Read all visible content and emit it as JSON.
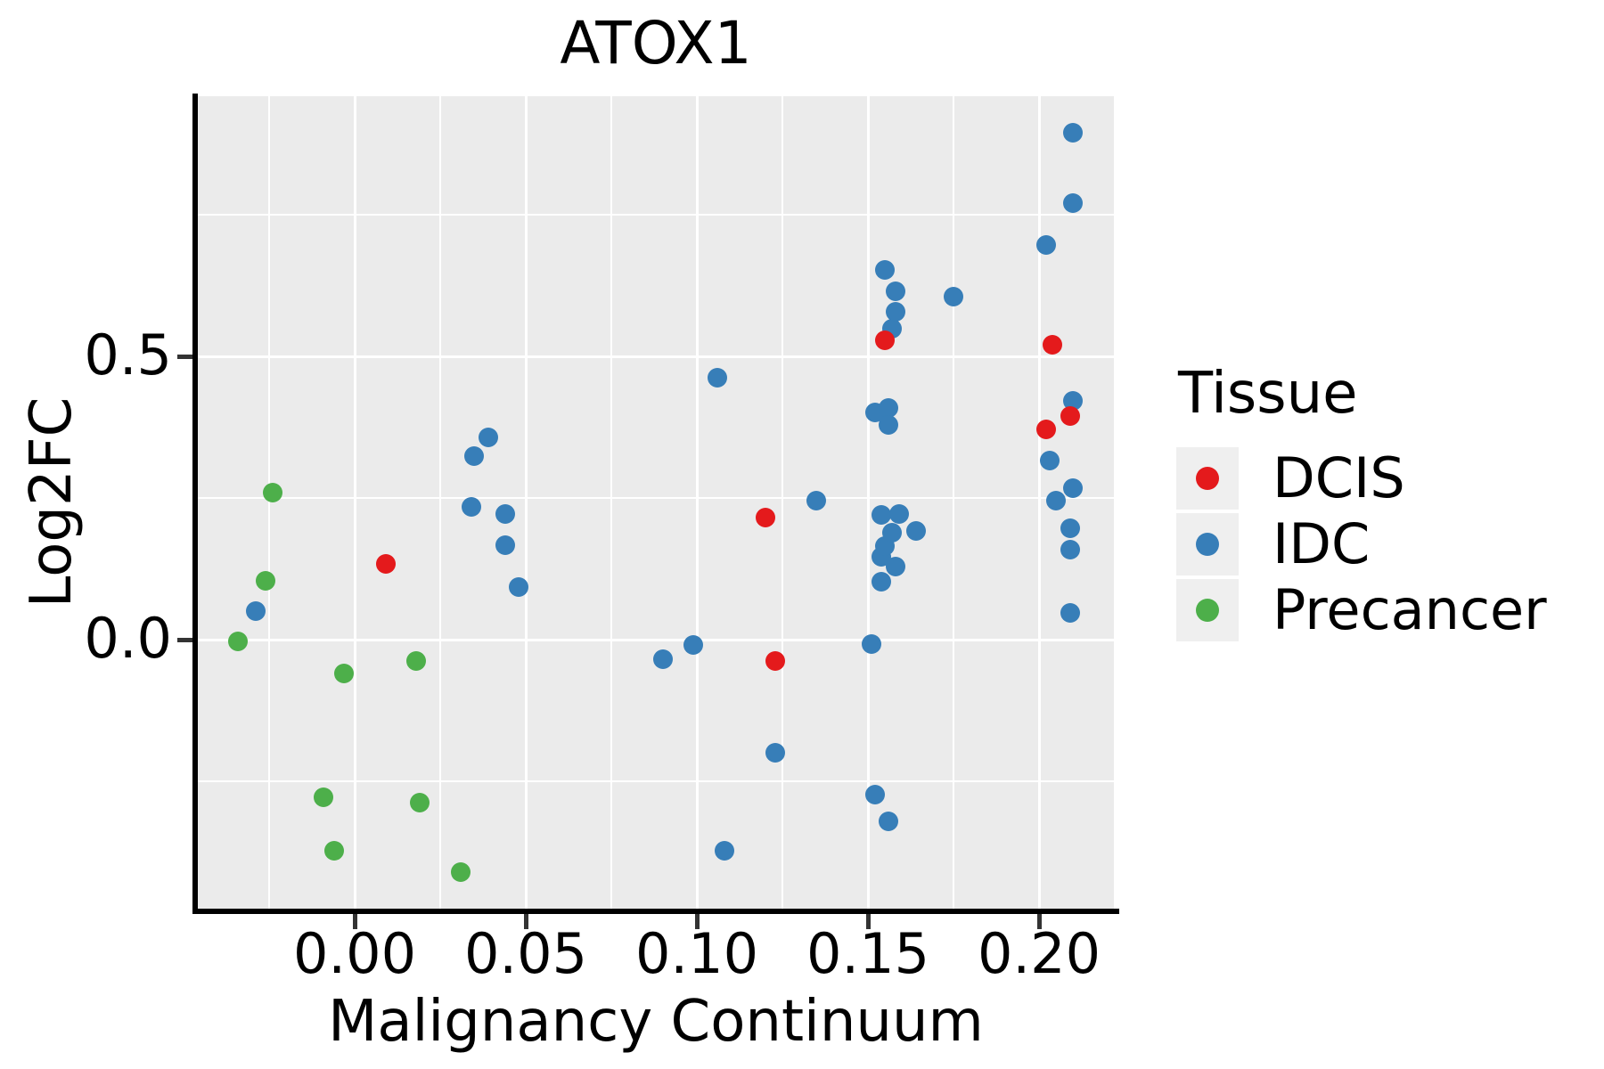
{
  "title": "ATOX1",
  "axes": {
    "x": {
      "label": "Malignancy Continuum",
      "tick_labels": [
        "0.00",
        "0.05",
        "0.10",
        "0.15",
        "0.20"
      ],
      "tick_values": [
        0.0,
        0.05,
        0.1,
        0.15,
        0.2
      ],
      "minor_values": [
        -0.025,
        0.025,
        0.075,
        0.125,
        0.175
      ],
      "range": [
        -0.046,
        0.222
      ]
    },
    "y": {
      "label": "Log2FC",
      "tick_labels": [
        "0.5",
        "0.0"
      ],
      "tick_values": [
        0.5,
        0.0
      ],
      "minor_values": [
        0.75,
        0.25,
        -0.25
      ],
      "range": [
        -0.475,
        0.96
      ]
    }
  },
  "legend": {
    "title": "Tissue",
    "entries": [
      {
        "label": "DCIS",
        "color": "#E41A1C"
      },
      {
        "label": "IDC",
        "color": "#377EB8"
      },
      {
        "label": "Precancer",
        "color": "#4DAF4A"
      }
    ]
  },
  "colors": {
    "panel_background": "#EBEBEB",
    "gridline": "#FFFFFF",
    "axis_line": "#000000",
    "tick_mark": "#333333",
    "text": "#000000",
    "legend_key_background": "#EFEFEF",
    "dcis": "#E41A1C",
    "idc": "#377EB8",
    "precancer": "#4DAF4A"
  },
  "chart_data": {
    "type": "scatter",
    "title": "ATOX1",
    "xlabel": "Malignancy Continuum",
    "ylabel": "Log2FC",
    "xlim": [
      -0.046,
      0.222
    ],
    "ylim": [
      -0.475,
      0.96
    ],
    "grid": "on",
    "legend_position": "right",
    "series": [
      {
        "name": "IDC",
        "color": "#377EB8",
        "points": [
          [
            -0.029,
            0.05
          ],
          [
            0.034,
            0.234
          ],
          [
            0.035,
            0.324
          ],
          [
            0.039,
            0.357
          ],
          [
            0.044,
            0.222
          ],
          [
            0.044,
            0.167
          ],
          [
            0.048,
            0.093
          ],
          [
            0.09,
            -0.035
          ],
          [
            0.099,
            -0.009
          ],
          [
            0.106,
            0.462
          ],
          [
            0.108,
            -0.373
          ],
          [
            0.123,
            -0.2
          ],
          [
            0.135,
            0.245
          ],
          [
            0.151,
            -0.008
          ],
          [
            0.152,
            0.401
          ],
          [
            0.152,
            -0.274
          ],
          [
            0.154,
            0.22
          ],
          [
            0.154,
            0.146
          ],
          [
            0.154,
            0.102
          ],
          [
            0.155,
            0.652
          ],
          [
            0.155,
            0.165
          ],
          [
            0.156,
            0.409
          ],
          [
            0.156,
            0.379
          ],
          [
            0.156,
            -0.321
          ],
          [
            0.157,
            0.549
          ],
          [
            0.157,
            0.188
          ],
          [
            0.158,
            0.615
          ],
          [
            0.158,
            0.579
          ],
          [
            0.158,
            0.129
          ],
          [
            0.159,
            0.222
          ],
          [
            0.164,
            0.192
          ],
          [
            0.175,
            0.605
          ],
          [
            0.202,
            0.697
          ],
          [
            0.203,
            0.316
          ],
          [
            0.205,
            0.245
          ],
          [
            0.209,
            0.196
          ],
          [
            0.209,
            0.159
          ],
          [
            0.209,
            0.047
          ],
          [
            0.21,
            0.895
          ],
          [
            0.21,
            0.771
          ],
          [
            0.21,
            0.421
          ],
          [
            0.21,
            0.267
          ]
        ]
      },
      {
        "name": "Precancer",
        "color": "#4DAF4A",
        "points": [
          [
            -0.034,
            -0.003
          ],
          [
            -0.026,
            0.104
          ],
          [
            -0.024,
            0.259
          ],
          [
            -0.009,
            -0.278
          ],
          [
            -0.006,
            -0.373
          ],
          [
            -0.003,
            -0.06
          ],
          [
            0.018,
            -0.038
          ],
          [
            0.019,
            -0.288
          ],
          [
            0.031,
            -0.41
          ]
        ]
      },
      {
        "name": "DCIS",
        "color": "#E41A1C",
        "points": [
          [
            0.009,
            0.134
          ],
          [
            0.12,
            0.215
          ],
          [
            0.123,
            -0.037
          ],
          [
            0.155,
            0.528
          ],
          [
            0.204,
            0.52
          ],
          [
            0.209,
            0.395
          ],
          [
            0.202,
            0.371
          ]
        ]
      }
    ]
  }
}
